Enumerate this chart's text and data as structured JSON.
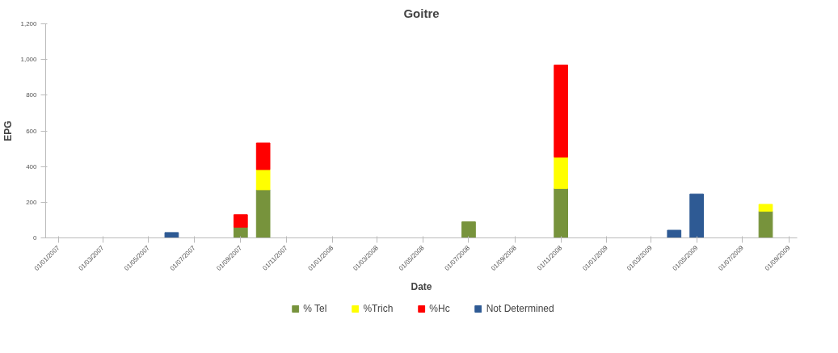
{
  "chart_data": {
    "type": "bar",
    "title": "Goitre",
    "xlabel": "Date",
    "ylabel": "EPG",
    "stacked": true,
    "legend": "bottom",
    "grid": false,
    "x": [
      "2007-06",
      "2007-09",
      "2007-10",
      "2008-07",
      "2008-11",
      "2009-04",
      "2009-05",
      "2009-08"
    ],
    "series": [
      {
        "name": "% Tel",
        "color": "#77933c",
        "values": [
          null,
          60,
          270,
          90,
          277,
          null,
          null,
          149
        ]
      },
      {
        "name": "%Trich",
        "color": "#ffff00",
        "values": [
          null,
          null,
          113,
          null,
          176,
          null,
          null,
          39
        ]
      },
      {
        "name": "%Hc",
        "color": "#ff0000",
        "values": [
          null,
          70,
          149,
          null,
          516,
          null,
          null,
          null
        ]
      },
      {
        "name": "Not Determined",
        "color": "#2e5a94",
        "values": [
          30,
          null,
          null,
          null,
          null,
          43,
          246,
          null
        ]
      }
    ],
    "xlim": [
      "2006-12-15",
      "2009-09-12"
    ],
    "xticks": [
      {
        "value": "2007-01-01",
        "label": "01/01/2007"
      },
      {
        "value": "2007-03-01",
        "label": "01/03/2007"
      },
      {
        "value": "2007-05-01",
        "label": "01/05/2007"
      },
      {
        "value": "2007-07-01",
        "label": "01/07/2007"
      },
      {
        "value": "2007-09-01",
        "label": "01/09/2007"
      },
      {
        "value": "2007-11-01",
        "label": "01/11/2007"
      },
      {
        "value": "2008-01-01",
        "label": "01/01/2008"
      },
      {
        "value": "2008-03-01",
        "label": "01/03/2008"
      },
      {
        "value": "2008-05-01",
        "label": "01/05/2008"
      },
      {
        "value": "2008-07-01",
        "label": "01/07/2008"
      },
      {
        "value": "2008-09-01",
        "label": "01/09/2008"
      },
      {
        "value": "2008-11-01",
        "label": "01/11/2008"
      },
      {
        "value": "2009-01-01",
        "label": "01/01/2009"
      },
      {
        "value": "2009-03-01",
        "label": "01/03/2009"
      },
      {
        "value": "2009-05-01",
        "label": "01/05/2009"
      },
      {
        "value": "2009-07-01",
        "label": "01/07/2009"
      },
      {
        "value": "2009-09-01",
        "label": "01/09/2009"
      }
    ],
    "ylim": [
      0,
      1200
    ],
    "yticks": [
      0,
      200,
      400,
      600,
      800,
      {
        "value": 1000,
        "label": "1,000"
      },
      {
        "value": 1200,
        "label": "1,200"
      }
    ]
  }
}
